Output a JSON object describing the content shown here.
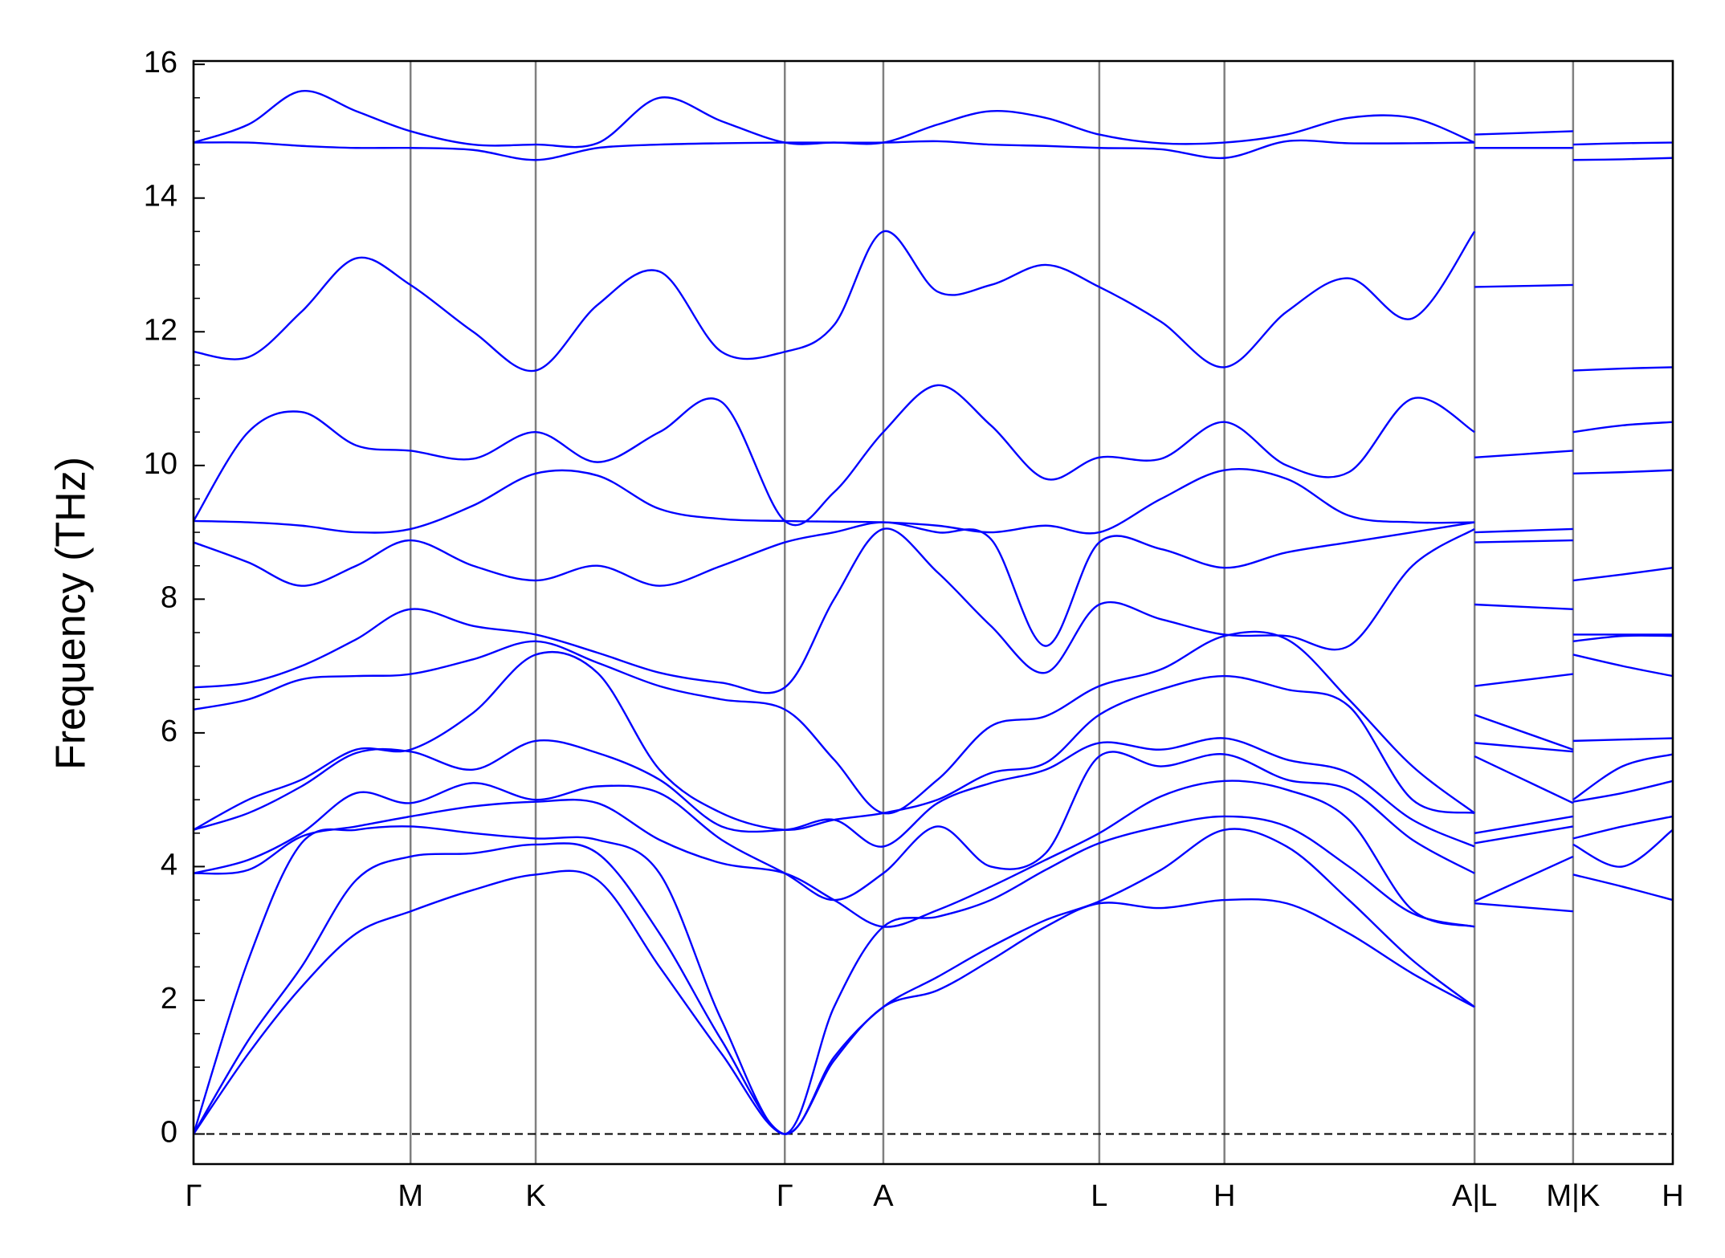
{
  "chart_data": {
    "type": "line",
    "ylabel": "Frequency (THz)",
    "color": "#0000ff",
    "x": [
      0,
      0.037,
      0.073,
      0.11,
      0.1467,
      0.189,
      0.2313,
      0.273,
      0.315,
      0.357,
      0.3997,
      0.433,
      0.4663,
      0.503,
      0.539,
      0.576,
      0.6123,
      0.654,
      0.6969,
      0.739,
      0.781,
      0.824,
      0.866,
      0.866,
      0.866,
      0.9326,
      0.9326,
      0.9326,
      0.966,
      1.0
    ],
    "series": [
      {
        "values": [
          0,
          1.2,
          2.2,
          3.0,
          3.33,
          3.65,
          3.88,
          3.8,
          2.5,
          1.2,
          0,
          1.1,
          1.9,
          2.15,
          2.6,
          3.1,
          3.45,
          3.38,
          3.5,
          3.45,
          3.0,
          2.4,
          1.9,
          null,
          3.45,
          3.33,
          null,
          3.88,
          3.7,
          3.5
        ]
      },
      {
        "values": [
          0,
          1.4,
          2.5,
          3.8,
          4.15,
          4.2,
          4.33,
          4.2,
          3.0,
          1.4,
          0,
          1.15,
          1.9,
          2.35,
          2.8,
          3.2,
          3.48,
          3.95,
          4.55,
          4.3,
          3.5,
          2.6,
          1.9,
          null,
          3.48,
          4.15,
          null,
          4.33,
          4.0,
          4.55
        ]
      },
      {
        "values": [
          0,
          2.6,
          4.35,
          4.55,
          4.6,
          4.5,
          4.42,
          4.4,
          3.9,
          1.7,
          0,
          1.9,
          3.1,
          3.25,
          3.5,
          3.95,
          4.35,
          4.6,
          4.75,
          4.6,
          4.0,
          3.3,
          3.1,
          null,
          4.35,
          4.6,
          null,
          4.42,
          4.6,
          4.75
        ]
      },
      {
        "values": [
          3.9,
          3.95,
          4.45,
          4.6,
          4.75,
          4.9,
          4.97,
          4.95,
          4.4,
          4.05,
          3.9,
          3.5,
          3.1,
          3.35,
          3.7,
          4.1,
          4.5,
          5.05,
          5.28,
          5.15,
          4.7,
          3.35,
          3.1,
          null,
          4.5,
          4.75,
          null,
          4.97,
          5.1,
          5.28
        ]
      },
      {
        "values": [
          3.9,
          4.1,
          4.5,
          5.1,
          4.95,
          5.25,
          5.0,
          5.2,
          5.1,
          4.4,
          3.9,
          3.5,
          3.9,
          4.6,
          4.0,
          4.2,
          5.65,
          5.5,
          5.68,
          5.3,
          5.15,
          4.4,
          3.9,
          null,
          5.65,
          4.95,
          null,
          5.0,
          5.5,
          5.68
        ]
      },
      {
        "values": [
          4.55,
          4.8,
          5.2,
          5.7,
          5.72,
          5.45,
          5.88,
          5.7,
          5.3,
          4.6,
          4.55,
          4.7,
          4.3,
          4.95,
          5.25,
          5.45,
          5.85,
          5.75,
          5.92,
          5.6,
          5.4,
          4.7,
          4.3,
          null,
          5.85,
          5.72,
          null,
          5.88,
          5.9,
          5.92
        ]
      },
      {
        "values": [
          4.55,
          5.0,
          5.3,
          5.75,
          5.75,
          6.3,
          7.17,
          6.9,
          5.45,
          4.8,
          4.55,
          4.7,
          4.8,
          5.0,
          5.4,
          5.55,
          6.27,
          6.65,
          6.85,
          6.65,
          6.4,
          5.0,
          4.8,
          null,
          6.27,
          5.75,
          null,
          7.17,
          7.0,
          6.85
        ]
      },
      {
        "values": [
          6.35,
          6.5,
          6.8,
          6.85,
          6.88,
          7.1,
          7.37,
          7.05,
          6.7,
          6.5,
          6.35,
          5.6,
          4.8,
          5.3,
          6.1,
          6.25,
          6.7,
          6.95,
          7.45,
          7.4,
          6.5,
          5.5,
          4.8,
          null,
          6.7,
          6.88,
          null,
          7.37,
          7.45,
          7.45
        ]
      },
      {
        "values": [
          6.68,
          6.75,
          7.0,
          7.4,
          7.85,
          7.6,
          7.47,
          7.2,
          6.9,
          6.75,
          6.68,
          8.0,
          9.05,
          8.4,
          7.6,
          6.9,
          7.92,
          7.7,
          7.47,
          7.45,
          7.3,
          8.5,
          9.05,
          null,
          7.92,
          7.85,
          null,
          7.47,
          7.47,
          7.47
        ]
      },
      {
        "values": [
          8.85,
          8.55,
          8.2,
          8.5,
          8.88,
          8.5,
          8.28,
          8.5,
          8.2,
          8.5,
          8.85,
          9.0,
          9.15,
          9.0,
          8.9,
          7.3,
          8.85,
          8.75,
          8.47,
          8.7,
          8.85,
          9.0,
          9.15,
          null,
          8.85,
          8.88,
          null,
          8.28,
          8.37,
          8.47
        ]
      },
      {
        "values": [
          9.17,
          9.15,
          9.1,
          9.0,
          9.05,
          9.4,
          9.88,
          9.85,
          9.35,
          9.2,
          9.17,
          9.16,
          9.15,
          9.1,
          9.0,
          9.1,
          9.0,
          9.5,
          9.93,
          9.8,
          9.25,
          9.15,
          9.15,
          null,
          9.0,
          9.05,
          null,
          9.88,
          9.9,
          9.93
        ]
      },
      {
        "values": [
          9.17,
          10.5,
          10.8,
          10.3,
          10.22,
          10.1,
          10.5,
          10.05,
          10.5,
          10.95,
          9.17,
          9.6,
          10.5,
          11.2,
          10.6,
          9.8,
          10.12,
          10.1,
          10.65,
          10.0,
          9.9,
          11.0,
          10.5,
          null,
          10.12,
          10.22,
          null,
          10.5,
          10.6,
          10.65
        ]
      },
      {
        "values": [
          11.7,
          11.62,
          12.3,
          13.1,
          12.7,
          12.0,
          11.42,
          12.4,
          12.9,
          11.7,
          11.7,
          12.1,
          13.5,
          12.6,
          12.7,
          13.0,
          12.67,
          12.15,
          11.47,
          12.3,
          12.8,
          12.2,
          13.5,
          null,
          12.67,
          12.7,
          null,
          11.42,
          11.45,
          11.47
        ]
      },
      {
        "values": [
          14.83,
          14.83,
          14.78,
          14.75,
          14.75,
          14.72,
          14.57,
          14.75,
          14.8,
          14.82,
          14.83,
          14.83,
          14.83,
          14.85,
          14.8,
          14.78,
          14.75,
          14.73,
          14.6,
          14.85,
          14.82,
          14.82,
          14.83,
          null,
          14.75,
          14.75,
          null,
          14.57,
          14.58,
          14.6
        ]
      },
      {
        "values": [
          14.83,
          15.1,
          15.6,
          15.3,
          15.0,
          14.8,
          14.8,
          14.82,
          15.5,
          15.15,
          14.83,
          14.83,
          14.83,
          15.1,
          15.3,
          15.2,
          14.95,
          14.82,
          14.83,
          14.95,
          15.2,
          15.2,
          14.83,
          null,
          14.95,
          15.0,
          null,
          14.8,
          14.82,
          14.83
        ]
      }
    ],
    "xlim": [
      0,
      1.0
    ],
    "xticks": [
      {
        "value": 0,
        "label": "Γ"
      },
      {
        "value": 0.1467,
        "label": "M"
      },
      {
        "value": 0.2313,
        "label": "K"
      },
      {
        "value": 0.3997,
        "label": "Γ"
      },
      {
        "value": 0.4663,
        "label": "A"
      },
      {
        "value": 0.6123,
        "label": "L"
      },
      {
        "value": 0.6969,
        "label": "H"
      },
      {
        "value": 0.866,
        "label": "A|L"
      },
      {
        "value": 0.9326,
        "label": "M|K"
      },
      {
        "value": 1.0,
        "label": "H"
      }
    ],
    "xtick_line_color": "#808080",
    "ylim": [
      -0.45,
      16.05
    ],
    "yticks": [
      0,
      2,
      4,
      6,
      8,
      10,
      12,
      14,
      16
    ],
    "yminorticks": [
      0.5,
      1,
      1.5,
      2.5,
      3,
      3.5,
      4.5,
      5,
      5.5,
      6.5,
      7,
      7.5,
      8.5,
      9,
      9.5,
      10.5,
      11,
      11.5,
      12.5,
      13,
      13.5,
      14.5,
      15,
      15.5
    ],
    "hlines": [
      0
    ],
    "hline_style": "dashed"
  }
}
